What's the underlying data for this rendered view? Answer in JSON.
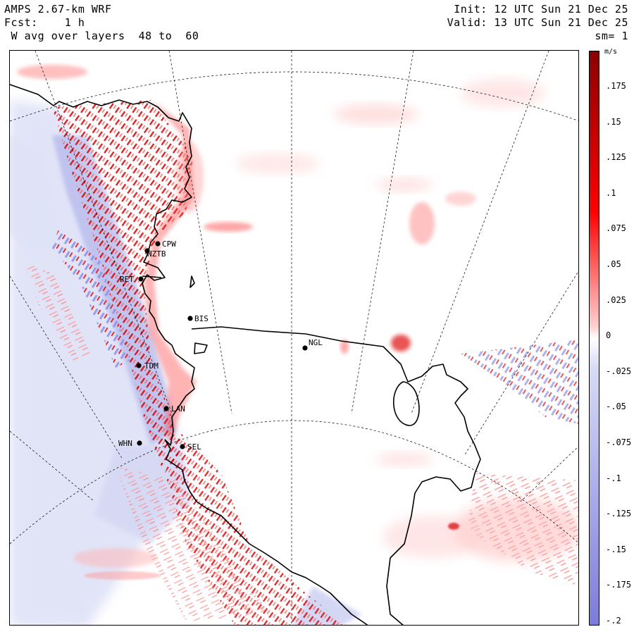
{
  "header": {
    "model": "AMPS 2.67-km WRF",
    "forecast": "Fcst:    1 h",
    "field": " W avg over layers  48 to  60",
    "init": "Init: 12 UTC Sun 21 Dec 25",
    "valid": "Valid: 13 UTC Sun 21 Dec 25",
    "smoothing": "sm= 1"
  },
  "colorbar": {
    "unit": "m/s",
    "ticks": [
      ".175",
      ".15",
      ".125",
      ".1",
      ".075",
      ".05",
      ".025",
      "0",
      "-.025",
      "-.05",
      "-.075",
      "-.1",
      "-.125",
      "-.15",
      "-.175",
      "-.2"
    ],
    "min": -0.2,
    "max": 0.2,
    "colors": {
      "positive_max": "#8b0000",
      "mid_positive": "#ff0000",
      "zero": "#ffffff",
      "negative_min": "#7b7bdc"
    }
  },
  "stations": [
    {
      "id": "CPW"
    },
    {
      "id": "NZTB"
    },
    {
      "id": "RET"
    },
    {
      "id": "BIS"
    },
    {
      "id": "NGL"
    },
    {
      "id": "TDM"
    },
    {
      "id": "LAN"
    },
    {
      "id": "WHN"
    },
    {
      "id": "SEL"
    }
  ]
}
